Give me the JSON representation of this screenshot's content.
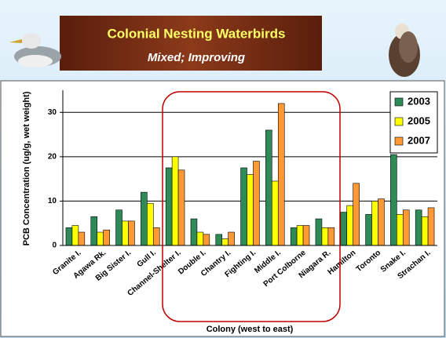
{
  "chart_data": {
    "type": "bar",
    "title": "Colonial Nesting Waterbirds",
    "subtitle": "Mixed; Improving",
    "y_label": "PCB Concentration (ug/g, wet weight)",
    "x_label": "Colony (west to east)",
    "categories": [
      "Granite I.",
      "Agawa Rk.",
      "Big Sister I.",
      "Gull I.",
      "Channel-Shelter I.",
      "Double I.",
      "Chantry I.",
      "Fighting I.",
      "Middle I.",
      "Port Colborne",
      "Niagara R.",
      "Hamilton",
      "Toronto",
      "Snake I.",
      "Strachan I."
    ],
    "series": [
      {
        "name": "2003",
        "color": "#2e8b57",
        "values": [
          4,
          6.5,
          8,
          12,
          17.5,
          6,
          2.5,
          17.5,
          26,
          4,
          6,
          7.5,
          7,
          20.5,
          8
        ]
      },
      {
        "name": "2005",
        "color": "#ffff00",
        "values": [
          4.5,
          3,
          5.5,
          9.5,
          20,
          3,
          1.5,
          16,
          14.5,
          4.5,
          4,
          9,
          10,
          7,
          6.5
        ]
      },
      {
        "name": "2007",
        "color": "#ff9933",
        "values": [
          3,
          3.5,
          5.5,
          4,
          17,
          2.5,
          3,
          19,
          32,
          4.5,
          4,
          14,
          10.5,
          8,
          8.5
        ]
      }
    ],
    "ylim": [
      0,
      35
    ],
    "yticks": [
      0,
      10,
      20,
      30
    ],
    "grid": true,
    "legend": "top-right"
  }
}
